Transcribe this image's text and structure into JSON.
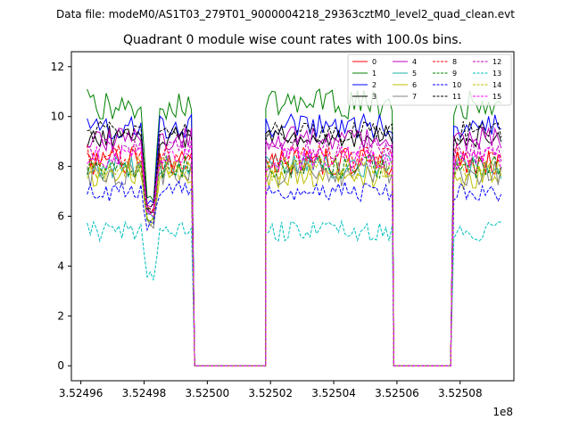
{
  "chart_data": {
    "type": "line",
    "suptitle": "Data file: modeM0/AS1T03_279T01_9000004218_29363cztM0_level2_quad_clean.evt",
    "title": "Quadrant 0 module wise count rates with 100.0s bins.",
    "xlabel": "",
    "ylabel": "",
    "x_offset_label": "1e8",
    "xlim": [
      3.524957,
      3.525097
    ],
    "ylim": [
      -0.6,
      12.6
    ],
    "xticks": [
      3.52496,
      3.52498,
      3.525,
      3.52502,
      3.52504,
      3.52506,
      3.52508
    ],
    "xtick_labels": [
      "3.52496",
      "3.52498",
      "3.52500",
      "3.52502",
      "3.52504",
      "3.52506",
      "3.52508"
    ],
    "yticks": [
      0,
      2,
      4,
      6,
      8,
      10,
      12
    ],
    "ytick_labels": [
      "0",
      "2",
      "4",
      "6",
      "8",
      "10",
      "12"
    ],
    "x_segments": [
      {
        "start": 3.524962,
        "end": 3.5249955,
        "level": "on"
      },
      {
        "start": 3.5249955,
        "end": 3.525002,
        "level": "gap",
        "from": 3.524996,
        "to": 3.5250185
      },
      {
        "start": 3.5250185,
        "end": 3.5250585,
        "level": "on"
      },
      {
        "start": 3.5250585,
        "end": 3.525078,
        "level": "gap",
        "from": 3.525059,
        "to": 3.525077
      },
      {
        "start": 3.525078,
        "end": 3.525093,
        "level": "on"
      }
    ],
    "series": [
      {
        "name": "0",
        "color": "#ff0000",
        "dash": "solid",
        "level": 8.2,
        "amp": 0.55,
        "dip": 6.2
      },
      {
        "name": "1",
        "color": "#008000",
        "dash": "solid",
        "level": 10.5,
        "amp": 0.6,
        "dip": 6.8
      },
      {
        "name": "2",
        "color": "#0000ff",
        "dash": "solid",
        "level": 9.6,
        "amp": 0.5,
        "dip": 6.5
      },
      {
        "name": "3",
        "color": "#000000",
        "dash": "solid",
        "level": 9.2,
        "amp": 0.45,
        "dip": 6.3
      },
      {
        "name": "4",
        "color": "#bf00bf",
        "dash": "solid",
        "level": 9.1,
        "amp": 0.5,
        "dip": 6.4
      },
      {
        "name": "5",
        "color": "#20b2aa",
        "dash": "solid",
        "level": 8.0,
        "amp": 0.5,
        "dip": 6.0
      },
      {
        "name": "6",
        "color": "#bfbf00",
        "dash": "solid",
        "level": 7.6,
        "amp": 0.5,
        "dip": 5.8
      },
      {
        "name": "7",
        "color": "#808080",
        "dash": "solid",
        "level": 7.7,
        "amp": 0.55,
        "dip": 5.7
      },
      {
        "name": "8",
        "color": "#ff0000",
        "dash": "dashed",
        "level": 8.4,
        "amp": 0.5,
        "dip": 6.2
      },
      {
        "name": "9",
        "color": "#008000",
        "dash": "dashed",
        "level": 8.0,
        "amp": 0.5,
        "dip": 6.0
      },
      {
        "name": "10",
        "color": "#0000ff",
        "dash": "dashed",
        "level": 7.0,
        "amp": 0.4,
        "dip": 5.6
      },
      {
        "name": "11",
        "color": "#000000",
        "dash": "dashed",
        "level": 9.4,
        "amp": 0.45,
        "dip": 6.4
      },
      {
        "name": "12",
        "color": "#bf00bf",
        "dash": "dashed",
        "level": 8.6,
        "amp": 0.5,
        "dip": 6.2
      },
      {
        "name": "13",
        "color": "#00bfbf",
        "dash": "dashed",
        "level": 5.4,
        "amp": 0.4,
        "dip": 3.6
      },
      {
        "name": "14",
        "color": "#bfbf00",
        "dash": "dashed",
        "level": 7.9,
        "amp": 0.5,
        "dip": 5.9
      },
      {
        "name": "15",
        "color": "#ff00ff",
        "dash": "dashed",
        "level": 8.3,
        "amp": 0.5,
        "dip": 6.1
      }
    ],
    "dip_x": 3.524982,
    "legend_loc": "upper right",
    "legend_columns": 4
  }
}
